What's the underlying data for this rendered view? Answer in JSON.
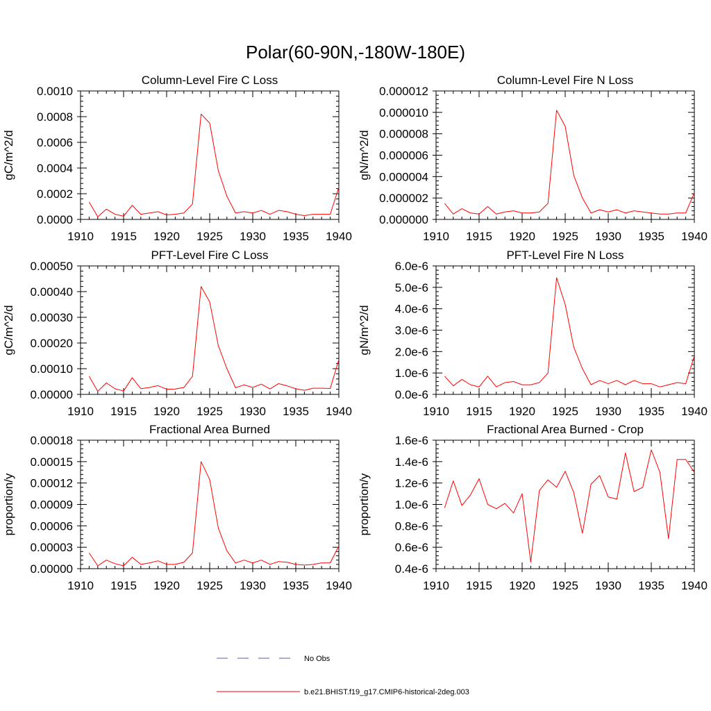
{
  "figure": {
    "title": "Polar(60-90N,-180W-180E)"
  },
  "legend": [
    {
      "label": "No Obs",
      "color": "#5a5ab4",
      "dash": "dashed"
    },
    {
      "label": "b.e21.BHIST.f19_g17.CMIP6-historical-2deg.003",
      "color": "#ff0000",
      "dash": "solid"
    }
  ],
  "chart_data": [
    {
      "type": "line",
      "title": "Column-Level Fire C Loss",
      "ylabel": "gC/m^2/d",
      "xlim": [
        1910,
        1940
      ],
      "ylim": [
        0,
        0.001
      ],
      "xticks": [
        1910,
        1915,
        1920,
        1925,
        1930,
        1935,
        1940
      ],
      "xtick_labels": [
        "1910",
        "1915",
        "1920",
        "1925",
        "1930",
        "1935",
        "1940"
      ],
      "yticks": [
        0,
        0.0002,
        0.0004,
        0.0006,
        0.0008,
        0.001
      ],
      "ytick_labels": [
        "0.0000",
        "0.0002",
        "0.0004",
        "0.0006",
        "0.0008",
        "0.0010"
      ],
      "x": [
        1911,
        1912,
        1913,
        1914,
        1915,
        1916,
        1917,
        1918,
        1919,
        1920,
        1921,
        1922,
        1923,
        1924,
        1925,
        1926,
        1927,
        1928,
        1929,
        1930,
        1931,
        1932,
        1933,
        1934,
        1935,
        1936,
        1937,
        1938,
        1939,
        1940
      ],
      "series": [
        {
          "color": "#ff0000",
          "values": [
            0.000135,
            2e-05,
            8e-05,
            4e-05,
            2.5e-05,
            0.00011,
            4e-05,
            5e-05,
            6e-05,
            3.5e-05,
            4e-05,
            5e-05,
            0.00012,
            0.00082,
            0.00075,
            0.00038,
            0.00018,
            5e-05,
            6e-05,
            5e-05,
            7e-05,
            4e-05,
            7e-05,
            6e-05,
            4e-05,
            3e-05,
            4e-05,
            4e-05,
            4e-05,
            0.00025
          ]
        }
      ]
    },
    {
      "type": "line",
      "title": "Column-Level Fire N Loss",
      "ylabel": "gN/m^2/d",
      "xlim": [
        1910,
        1940
      ],
      "ylim": [
        0,
        1.2e-05
      ],
      "xticks": [
        1910,
        1915,
        1920,
        1925,
        1930,
        1935,
        1940
      ],
      "xtick_labels": [
        "1910",
        "1915",
        "1920",
        "1925",
        "1930",
        "1935",
        "1940"
      ],
      "yticks": [
        0,
        2e-06,
        4e-06,
        6e-06,
        8e-06,
        1e-05,
        1.2e-05
      ],
      "ytick_labels": [
        "0.000000",
        "0.000002",
        "0.000004",
        "0.000006",
        "0.000008",
        "0.000010",
        "0.000012"
      ],
      "x": [
        1911,
        1912,
        1913,
        1914,
        1915,
        1916,
        1917,
        1918,
        1919,
        1920,
        1921,
        1922,
        1923,
        1924,
        1925,
        1926,
        1927,
        1928,
        1929,
        1930,
        1931,
        1932,
        1933,
        1934,
        1935,
        1936,
        1937,
        1938,
        1939,
        1940
      ],
      "series": [
        {
          "color": "#ff0000",
          "values": [
            1.5e-06,
            5e-07,
            1e-06,
            6e-07,
            5e-07,
            1.2e-06,
            5e-07,
            7e-07,
            8e-07,
            6e-07,
            6e-07,
            7e-07,
            1.5e-06,
            1.02e-05,
            8.7e-06,
            4.1e-06,
            2e-06,
            6e-07,
            9e-07,
            7e-07,
            9e-07,
            6e-07,
            8e-07,
            7e-07,
            6e-07,
            5e-07,
            5e-07,
            6e-07,
            6e-07,
            2.5e-06
          ]
        }
      ]
    },
    {
      "type": "line",
      "title": "PFT-Level Fire C Loss",
      "ylabel": "gC/m^2/d",
      "xlim": [
        1910,
        1940
      ],
      "ylim": [
        0,
        0.0005
      ],
      "xticks": [
        1910,
        1915,
        1920,
        1925,
        1930,
        1935,
        1940
      ],
      "xtick_labels": [
        "1910",
        "1915",
        "1920",
        "1925",
        "1930",
        "1935",
        "1940"
      ],
      "yticks": [
        0,
        0.0001,
        0.0002,
        0.0003,
        0.0004,
        0.0005
      ],
      "ytick_labels": [
        "0.00000",
        "0.00010",
        "0.00020",
        "0.00030",
        "0.00040",
        "0.00050"
      ],
      "x": [
        1911,
        1912,
        1913,
        1914,
        1915,
        1916,
        1917,
        1918,
        1919,
        1920,
        1921,
        1922,
        1923,
        1924,
        1925,
        1926,
        1927,
        1928,
        1929,
        1930,
        1931,
        1932,
        1933,
        1934,
        1935,
        1936,
        1937,
        1938,
        1939,
        1940
      ],
      "series": [
        {
          "color": "#ff0000",
          "values": [
            7e-05,
            1.2e-05,
            4.5e-05,
            2.2e-05,
            1.3e-05,
            6.5e-05,
            2.2e-05,
            2.7e-05,
            3.4e-05,
            2e-05,
            2.1e-05,
            2.7e-05,
            7e-05,
            0.00042,
            0.00036,
            0.00019,
            0.0001,
            2.6e-05,
            3.7e-05,
            2.7e-05,
            4e-05,
            2.1e-05,
            4.2e-05,
            3.3e-05,
            2.2e-05,
            1.6e-05,
            2.4e-05,
            2.4e-05,
            2.3e-05,
            0.000135
          ]
        }
      ]
    },
    {
      "type": "line",
      "title": "PFT-Level Fire N Loss",
      "ylabel": "gN/m^2/d",
      "xlim": [
        1910,
        1940
      ],
      "ylim": [
        0,
        6e-06
      ],
      "xticks": [
        1910,
        1915,
        1920,
        1925,
        1930,
        1935,
        1940
      ],
      "xtick_labels": [
        "1910",
        "1915",
        "1920",
        "1925",
        "1930",
        "1935",
        "1940"
      ],
      "yticks": [
        0,
        1e-06,
        2e-06,
        3e-06,
        4e-06,
        5e-06,
        6e-06
      ],
      "ytick_labels": [
        "0.0e-6",
        "1.0e-6",
        "2.0e-6",
        "3.0e-6",
        "4.0e-6",
        "5.0e-6",
        "6.0e-6"
      ],
      "x": [
        1911,
        1912,
        1913,
        1914,
        1915,
        1916,
        1917,
        1918,
        1919,
        1920,
        1921,
        1922,
        1923,
        1924,
        1925,
        1926,
        1927,
        1928,
        1929,
        1930,
        1931,
        1932,
        1933,
        1934,
        1935,
        1936,
        1937,
        1938,
        1939,
        1940
      ],
      "series": [
        {
          "color": "#ff0000",
          "values": [
            8.5e-07,
            4e-07,
            7e-07,
            4.5e-07,
            3.5e-07,
            8.5e-07,
            3.5e-07,
            5.5e-07,
            6e-07,
            4.5e-07,
            4.5e-07,
            5.5e-07,
            1e-06,
            5.45e-06,
            4.2e-06,
            2.2e-06,
            1.2e-06,
            4.5e-07,
            6.5e-07,
            5e-07,
            6.5e-07,
            4.5e-07,
            6.5e-07,
            5e-07,
            5e-07,
            3.5e-07,
            4.5e-07,
            5.5e-07,
            5e-07,
            1.8e-06
          ]
        }
      ]
    },
    {
      "type": "line",
      "title": "Fractional Area Burned",
      "ylabel": "proportion/y",
      "xlim": [
        1910,
        1940
      ],
      "ylim": [
        0,
        0.00018
      ],
      "xticks": [
        1910,
        1915,
        1920,
        1925,
        1930,
        1935,
        1940
      ],
      "xtick_labels": [
        "1910",
        "1915",
        "1920",
        "1925",
        "1930",
        "1935",
        "1940"
      ],
      "yticks": [
        0,
        3e-05,
        6e-05,
        9e-05,
        0.00012,
        0.00015,
        0.00018
      ],
      "ytick_labels": [
        "0.00000",
        "0.00003",
        "0.00006",
        "0.00009",
        "0.00012",
        "0.00015",
        "0.00018"
      ],
      "x": [
        1911,
        1912,
        1913,
        1914,
        1915,
        1916,
        1917,
        1918,
        1919,
        1920,
        1921,
        1922,
        1923,
        1924,
        1925,
        1926,
        1927,
        1928,
        1929,
        1930,
        1931,
        1932,
        1933,
        1934,
        1935,
        1936,
        1937,
        1938,
        1939,
        1940
      ],
      "series": [
        {
          "color": "#ff0000",
          "values": [
            2.2e-05,
            4e-06,
            1.2e-05,
            7e-06,
            4e-06,
            1.6e-05,
            6e-06,
            8e-06,
            1.1e-05,
            6e-06,
            6e-06,
            9e-06,
            2.2e-05,
            0.00015,
            0.000125,
            5.7e-05,
            2.5e-05,
            8e-06,
            1.2e-05,
            8e-06,
            1.2e-05,
            6e-06,
            1e-05,
            9e-06,
            6e-06,
            5e-06,
            6e-06,
            8e-06,
            8e-06,
            3.2e-05
          ]
        }
      ]
    },
    {
      "type": "line",
      "title": "Fractional Area Burned - Crop",
      "ylabel": "proportion/y",
      "xlim": [
        1910,
        1940
      ],
      "ylim": [
        4e-07,
        1.6e-06
      ],
      "xticks": [
        1910,
        1915,
        1920,
        1925,
        1930,
        1935,
        1940
      ],
      "xtick_labels": [
        "1910",
        "1915",
        "1920",
        "1925",
        "1930",
        "1935",
        "1940"
      ],
      "yticks": [
        4e-07,
        6e-07,
        8e-07,
        1e-06,
        1.2e-06,
        1.4e-06,
        1.6e-06
      ],
      "ytick_labels": [
        "0.4e-6",
        "0.6e-6",
        "0.8e-6",
        "1.0e-6",
        "1.2e-6",
        "1.4e-6",
        "1.6e-6"
      ],
      "x": [
        1911,
        1912,
        1913,
        1914,
        1915,
        1916,
        1917,
        1918,
        1919,
        1920,
        1921,
        1922,
        1923,
        1924,
        1925,
        1926,
        1927,
        1928,
        1929,
        1930,
        1931,
        1932,
        1933,
        1934,
        1935,
        1936,
        1937,
        1938,
        1939,
        1940
      ],
      "series": [
        {
          "color": "#ff0000",
          "values": [
            9.7e-07,
            1.22e-06,
            9.9e-07,
            1.09e-06,
            1.24e-06,
            1e-06,
            9.6e-07,
            1.01e-06,
            9.2e-07,
            1.1e-06,
            4.6e-07,
            1.13e-06,
            1.23e-06,
            1.16e-06,
            1.31e-06,
            1.11e-06,
            7.3e-07,
            1.19e-06,
            1.27e-06,
            1.07e-06,
            1.05e-06,
            1.48e-06,
            1.12e-06,
            1.16e-06,
            1.51e-06,
            1.3e-06,
            6.8e-07,
            1.42e-06,
            1.42e-06,
            1.3e-06
          ]
        }
      ]
    }
  ]
}
